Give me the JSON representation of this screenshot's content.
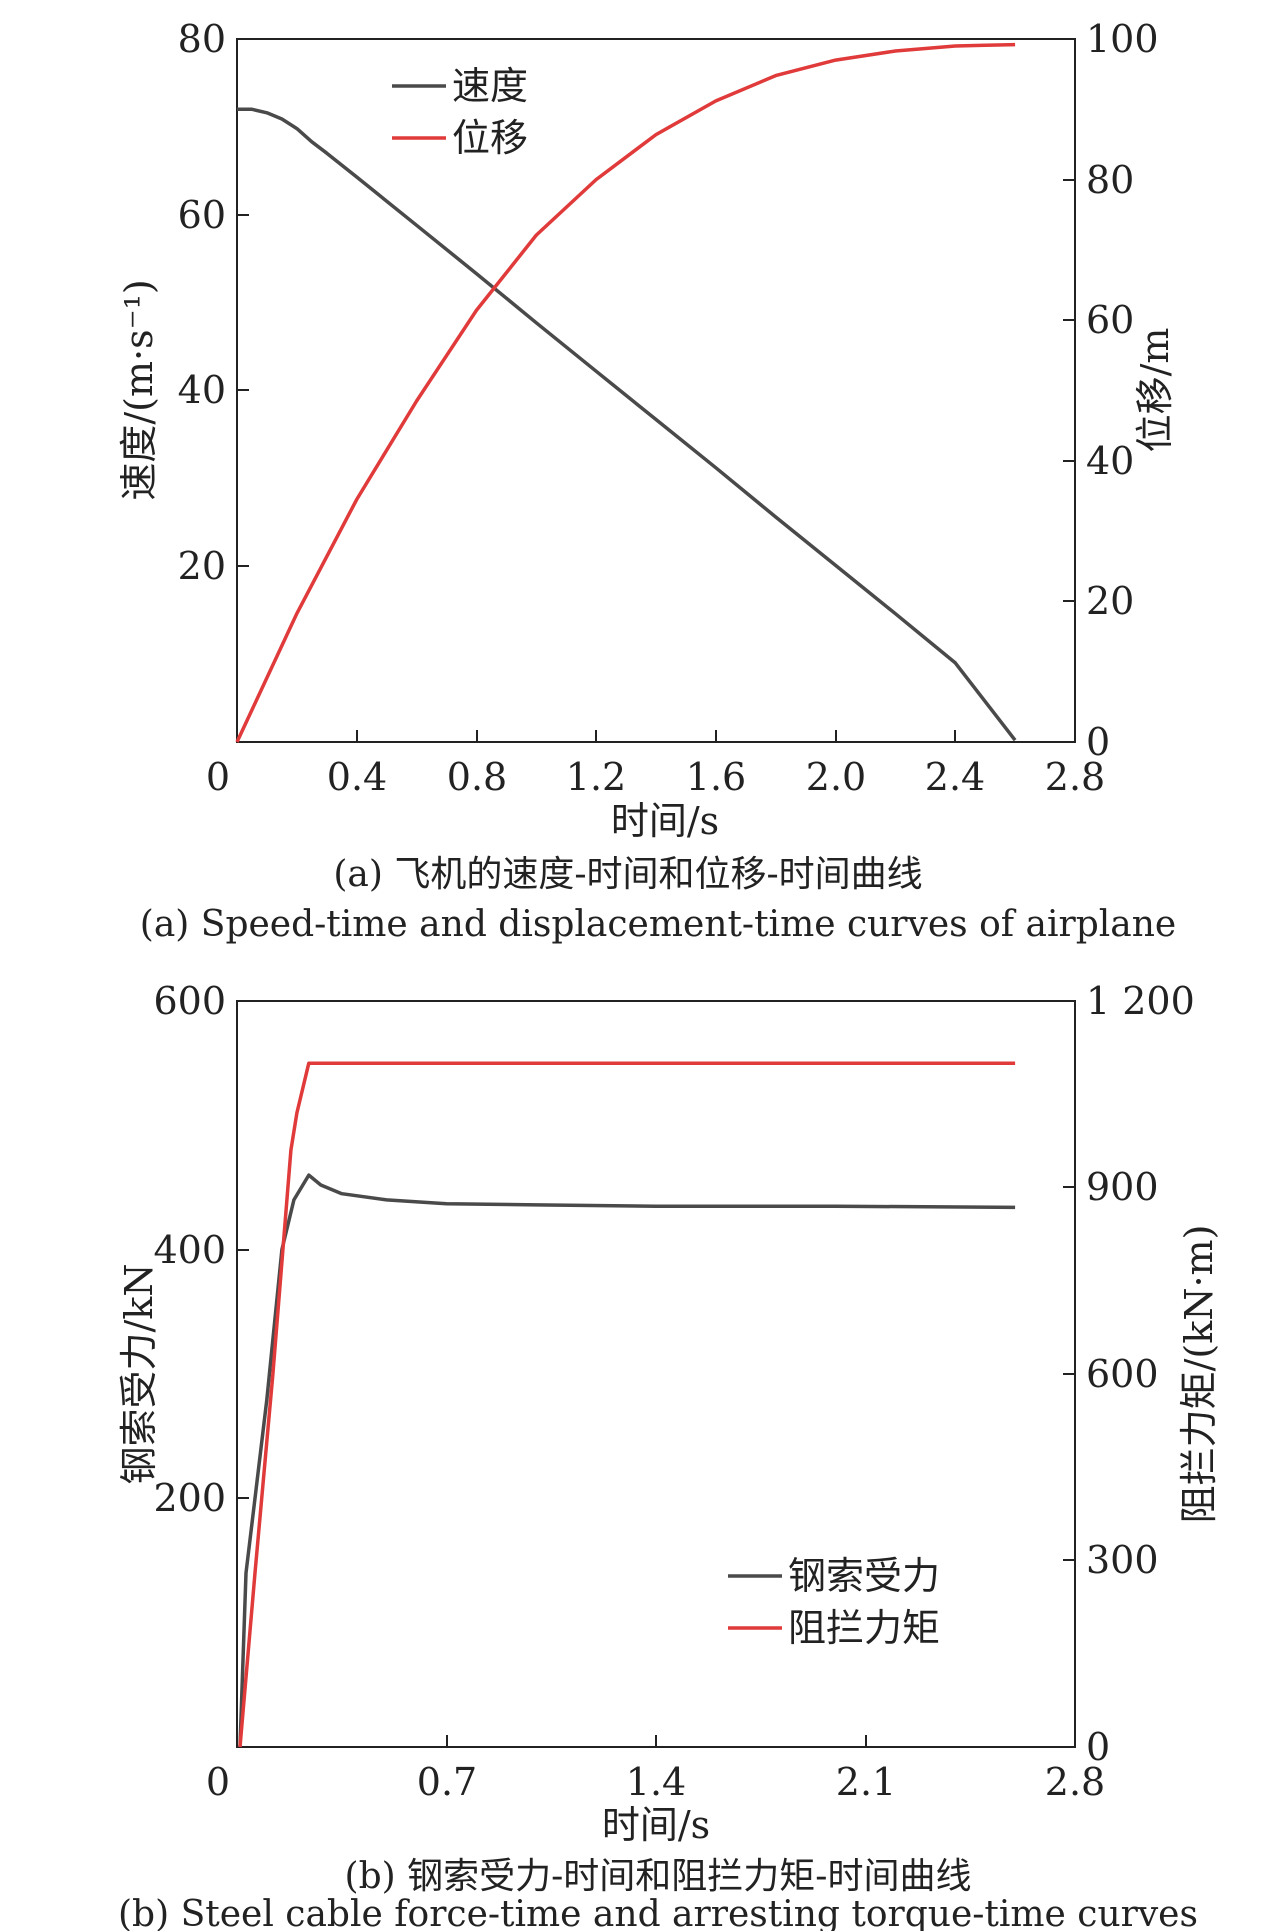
{
  "chart_data": [
    {
      "id": "a",
      "type": "line",
      "xlabel": "时间/s",
      "ylabel_left": "速度/(m·s⁻¹)",
      "ylabel_right": "位移/m",
      "xlim": [
        0,
        2.8
      ],
      "ylim_left": [
        0,
        80
      ],
      "ylim_right": [
        0,
        100
      ],
      "x_ticks": [
        "0",
        "0.4",
        "0.8",
        "1.2",
        "1.6",
        "2.0",
        "2.4",
        "2.8"
      ],
      "y_left_ticks": [
        "20",
        "40",
        "60",
        "80"
      ],
      "y_right_ticks": [
        "0",
        "20",
        "40",
        "60",
        "80",
        "100"
      ],
      "legend_placement": "top-left",
      "caption_cn": "(a) 飞机的速度-时间和位移-时间曲线",
      "caption_en": "(a) Speed-time and displacement-time curves of airplane",
      "series": [
        {
          "name": "速度",
          "axis": "left",
          "color": "#4a4a4a",
          "x": [
            0,
            0.05,
            0.1,
            0.15,
            0.2,
            0.25,
            0.3,
            0.4,
            0.6,
            0.8,
            1.0,
            1.2,
            1.4,
            1.6,
            1.8,
            2.0,
            2.2,
            2.4,
            2.6
          ],
          "values": [
            72,
            72,
            71.6,
            70.9,
            69.8,
            68.3,
            67,
            64.3,
            58.8,
            53.3,
            47.7,
            42.2,
            36.7,
            31.2,
            25.6,
            20.1,
            14.6,
            9.0,
            0.2
          ]
        },
        {
          "name": "位移",
          "axis": "right",
          "color": "#e03a3a",
          "x": [
            0,
            0.2,
            0.4,
            0.6,
            0.8,
            1.0,
            1.2,
            1.4,
            1.6,
            1.8,
            2.0,
            2.2,
            2.4,
            2.5,
            2.6
          ],
          "values": [
            0,
            18.3,
            34.5,
            48.5,
            61.4,
            72.1,
            80.0,
            86.4,
            91.2,
            94.8,
            97.0,
            98.3,
            99.0,
            99.1,
            99.2
          ]
        }
      ]
    },
    {
      "id": "b",
      "type": "line",
      "xlabel": "时间/s",
      "ylabel_left": "钢索受力/kN",
      "ylabel_right": "阻拦力矩/(kN·m)",
      "xlim": [
        0,
        2.8
      ],
      "ylim_left": [
        0,
        600
      ],
      "ylim_right": [
        0,
        1200
      ],
      "x_ticks": [
        "0",
        "0.7",
        "1.4",
        "2.1",
        "2.8"
      ],
      "y_left_ticks": [
        "200",
        "400",
        "600"
      ],
      "y_right_ticks": [
        "0",
        "300",
        "600",
        "900",
        "1 200"
      ],
      "legend_placement": "bottom-right",
      "caption_cn": "(b) 钢索受力-时间和阻拦力矩-时间曲线",
      "caption_en": "(b) Steel cable force-time and arresting torque-time curves",
      "series": [
        {
          "name": "钢索受力",
          "axis": "left",
          "color": "#4a4a4a",
          "x": [
            0.01,
            0.03,
            0.06,
            0.1,
            0.15,
            0.19,
            0.24,
            0.28,
            0.35,
            0.5,
            0.7,
            1.0,
            1.4,
            2.0,
            2.6
          ],
          "values": [
            0,
            140,
            200,
            280,
            400,
            440,
            460,
            452,
            445,
            440,
            437,
            436,
            435,
            435,
            434
          ]
        },
        {
          "name": "阻拦力矩",
          "axis": "right",
          "color": "#e03a3a",
          "x": [
            0.01,
            0.06,
            0.12,
            0.18,
            0.2,
            0.24,
            0.26,
            0.5,
            1.0,
            2.0,
            2.6
          ],
          "values": [
            0,
            280,
            600,
            960,
            1020,
            1100,
            1100,
            1100,
            1100,
            1100,
            1100
          ]
        }
      ]
    }
  ]
}
